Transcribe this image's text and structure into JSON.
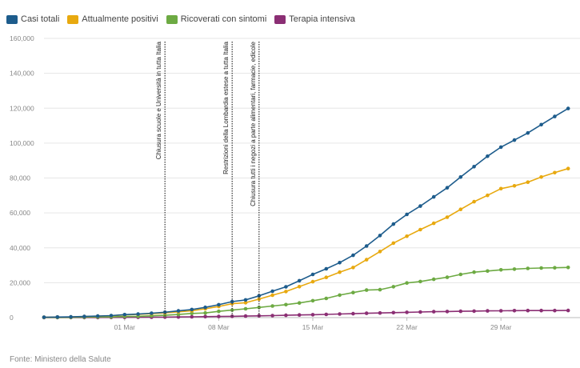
{
  "legend": [
    {
      "name": "Casi totali",
      "color": "#1d5c8c"
    },
    {
      "name": "Attualmente positivi",
      "color": "#e8a90f"
    },
    {
      "name": "Ricoverati con sintomi",
      "color": "#6daa43"
    },
    {
      "name": "Terapia intensiva",
      "color": "#8b2f74"
    }
  ],
  "source": "Fonte: Ministero della Salute",
  "chart_data": {
    "type": "line",
    "title": "",
    "xlabel": "",
    "ylabel": "",
    "x": [
      "2020-02-24",
      "2020-02-25",
      "2020-02-26",
      "2020-02-27",
      "2020-02-28",
      "2020-02-29",
      "2020-03-01",
      "2020-03-02",
      "2020-03-03",
      "2020-03-04",
      "2020-03-05",
      "2020-03-06",
      "2020-03-07",
      "2020-03-08",
      "2020-03-09",
      "2020-03-10",
      "2020-03-11",
      "2020-03-12",
      "2020-03-13",
      "2020-03-14",
      "2020-03-15",
      "2020-03-16",
      "2020-03-17",
      "2020-03-18",
      "2020-03-19",
      "2020-03-20",
      "2020-03-21",
      "2020-03-22",
      "2020-03-23",
      "2020-03-24",
      "2020-03-25",
      "2020-03-26",
      "2020-03-27",
      "2020-03-28",
      "2020-03-29",
      "2020-03-30",
      "2020-03-31",
      "2020-04-01",
      "2020-04-02",
      "2020-04-03"
    ],
    "x_tick_labels": [
      "01 Mar",
      "08 Mar",
      "15 Mar",
      "22 Mar",
      "29 Mar"
    ],
    "x_tick_index": [
      6,
      13,
      20,
      27,
      34
    ],
    "ylim": [
      0,
      160000
    ],
    "y_ticks": [
      0,
      20000,
      40000,
      60000,
      80000,
      100000,
      120000,
      140000,
      160000
    ],
    "y_tick_labels": [
      "0",
      "20,000",
      "40,000",
      "60,000",
      "80,000",
      "100,000",
      "120,000",
      "140,000",
      "160,000"
    ],
    "grid": "horizontal",
    "legend_position": "top-left",
    "series": [
      {
        "name": "Casi totali",
        "color": "#1d5c8c",
        "values": [
          229,
          322,
          400,
          650,
          888,
          1128,
          1694,
          2036,
          2502,
          3089,
          3858,
          4636,
          5883,
          7375,
          9172,
          10149,
          12462,
          15113,
          17660,
          21157,
          24747,
          27980,
          31506,
          35713,
          41035,
          47021,
          53578,
          59138,
          63927,
          69176,
          74386,
          80539,
          86498,
          92472,
          97689,
          101739,
          105792,
          110574,
          115242,
          119827
        ]
      },
      {
        "name": "Attualmente positivi",
        "color": "#e8a90f",
        "values": [
          221,
          311,
          385,
          588,
          821,
          1049,
          1577,
          1835,
          2263,
          2706,
          3296,
          3916,
          5061,
          6387,
          7985,
          8514,
          10590,
          12839,
          14955,
          17750,
          20603,
          23073,
          26062,
          28710,
          33190,
          37860,
          42681,
          46638,
          50418,
          54030,
          57521,
          62013,
          66414,
          70065,
          73880,
          75528,
          77635,
          80572,
          83049,
          85388
        ]
      },
      {
        "name": "Ricoverati con sintomi",
        "color": "#6daa43",
        "values": [
          101,
          114,
          128,
          248,
          345,
          401,
          639,
          742,
          1034,
          1346,
          1790,
          2394,
          2651,
          3557,
          4316,
          5038,
          5838,
          6650,
          7426,
          8372,
          9663,
          11025,
          12894,
          14363,
          15757,
          16020,
          17708,
          19846,
          20692,
          21937,
          23112,
          24753,
          26029,
          26676,
          27386,
          27795,
          28192,
          28403,
          28540,
          28741
        ]
      },
      {
        "name": "Terapia intensiva",
        "color": "#8b2f74",
        "values": [
          27,
          35,
          36,
          56,
          64,
          105,
          140,
          166,
          229,
          295,
          351,
          462,
          567,
          650,
          733,
          877,
          1028,
          1153,
          1328,
          1518,
          1672,
          1851,
          2060,
          2257,
          2498,
          2655,
          2857,
          3009,
          3204,
          3396,
          3489,
          3612,
          3732,
          3856,
          3906,
          3981,
          4023,
          4035,
          4053,
          4068
        ]
      }
    ],
    "annotations": [
      {
        "x_index": 9,
        "label": "Chiusura scuole e Università in tutta Italia"
      },
      {
        "x_index": 14,
        "label": "Restrizioni della Lombardia estese a tutta Italia"
      },
      {
        "x_index": 16,
        "label": "Chiusura tutti i negozi a parte alimentari, farmacie, edicole"
      }
    ]
  }
}
